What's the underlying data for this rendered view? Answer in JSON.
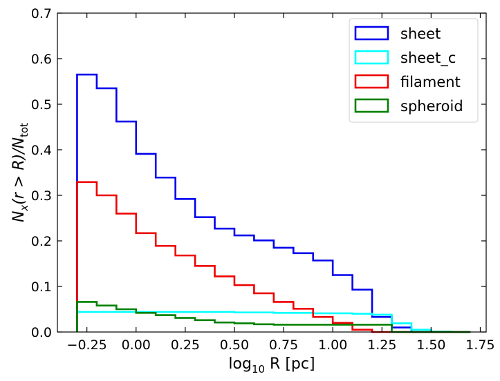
{
  "chart_data": {
    "type": "histogram-step",
    "title": "",
    "xlabel": {
      "text": "log",
      "sub": "10",
      "rest": " R [pc]"
    },
    "ylabel": {
      "pre": "N",
      "sub_x": "x",
      "mid": "(r > R)/N",
      "sub_tot": "tot"
    },
    "xlim": [
      -0.4,
      1.78
    ],
    "ylim": [
      0.0,
      0.7
    ],
    "xticks": [
      -0.25,
      0.0,
      0.25,
      0.5,
      0.75,
      1.0,
      1.25,
      1.5,
      1.75
    ],
    "xtick_labels": [
      "−0.25",
      "0.00",
      "0.25",
      "0.50",
      "0.75",
      "1.00",
      "1.25",
      "1.50",
      "1.75"
    ],
    "yticks": [
      0.0,
      0.1,
      0.2,
      0.3,
      0.4,
      0.5,
      0.6,
      0.7
    ],
    "ytick_labels": [
      "0.0",
      "0.1",
      "0.2",
      "0.3",
      "0.4",
      "0.5",
      "0.6",
      "0.7"
    ],
    "legend_position": "top-right",
    "bin_edges": [
      -0.3,
      -0.2,
      -0.1,
      0.0,
      0.1,
      0.2,
      0.3,
      0.4,
      0.5,
      0.6,
      0.7,
      0.8,
      0.9,
      1.0,
      1.1,
      1.2,
      1.3,
      1.4,
      1.5,
      1.6,
      1.7
    ],
    "series": [
      {
        "name": "sheet",
        "color": "#0000ee",
        "values": [
          0.565,
          0.535,
          0.462,
          0.391,
          0.339,
          0.292,
          0.252,
          0.227,
          0.212,
          0.201,
          0.185,
          0.173,
          0.157,
          0.125,
          0.093,
          0.033,
          0.01,
          0.0,
          0.0,
          0.0
        ]
      },
      {
        "name": "sheet_c",
        "color": "#00ffff",
        "values": [
          0.044,
          0.044,
          0.044,
          0.044,
          0.044,
          0.044,
          0.044,
          0.044,
          0.043,
          0.043,
          0.042,
          0.042,
          0.041,
          0.041,
          0.04,
          0.038,
          0.019,
          0.005,
          0.001,
          0.0
        ]
      },
      {
        "name": "filament",
        "color": "#ee0000",
        "values": [
          0.329,
          0.3,
          0.26,
          0.217,
          0.189,
          0.168,
          0.145,
          0.122,
          0.103,
          0.085,
          0.066,
          0.051,
          0.033,
          0.02,
          0.005,
          0.0,
          0.0,
          0.0,
          0.0,
          0.0
        ]
      },
      {
        "name": "spheroid",
        "color": "#008000",
        "values": [
          0.066,
          0.058,
          0.05,
          0.042,
          0.037,
          0.031,
          0.026,
          0.021,
          0.019,
          0.017,
          0.016,
          0.016,
          0.016,
          0.016,
          0.016,
          0.016,
          0.0,
          0.0,
          0.0,
          0.0
        ]
      }
    ]
  }
}
